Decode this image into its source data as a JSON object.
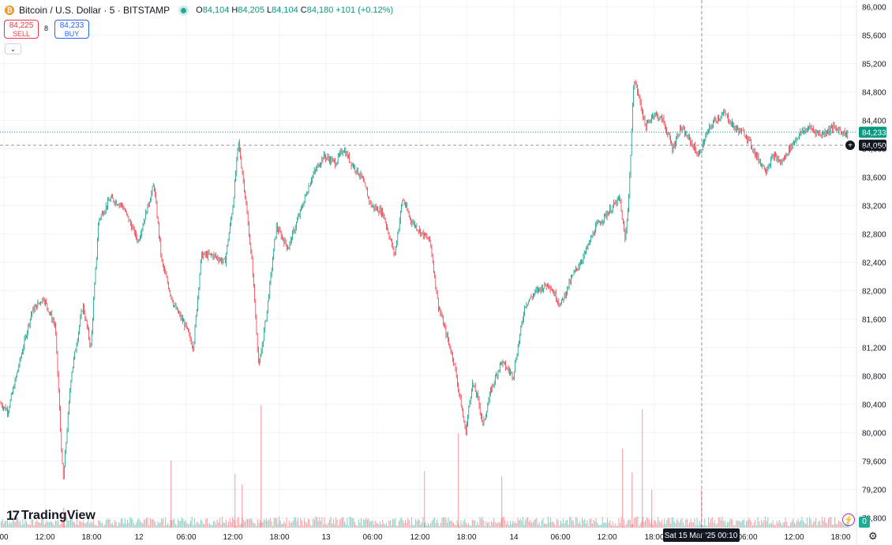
{
  "header": {
    "symbol_title": "Bitcoin / U.S. Dollar · 5 · BITSTAMP",
    "ohlc": {
      "o_label": "O",
      "o": "84,104",
      "h_label": "H",
      "h": "84,205",
      "l_label": "L",
      "l": "84,104",
      "c_label": "C",
      "c": "84,180",
      "change": "+101 (+0.12%)"
    }
  },
  "trade": {
    "sell_price": "84,225",
    "sell_label": "SELL",
    "buy_price": "84,233",
    "buy_label": "BUY",
    "spread": "8"
  },
  "brand": {
    "logo_text": "TradingView"
  },
  "indicators": {
    "alerts_count": "0"
  },
  "colors": {
    "up": "#089981",
    "down": "#f23645",
    "grid": "#f0f3fa",
    "last_price_label": "#089981"
  },
  "chart_data": {
    "type": "candlestick",
    "symbol": "Bitcoin / U.S. Dollar",
    "interval": "5",
    "exchange": "BITSTAMP",
    "y_ticks": [
      86000,
      85600,
      85200,
      84800,
      84400,
      84000,
      83600,
      83200,
      82800,
      82400,
      82000,
      81600,
      81200,
      80800,
      80400,
      80000,
      79600,
      79200,
      78800
    ],
    "ylim": [
      78660,
      86030
    ],
    "x_ticks": [
      "00",
      "12:00",
      "18:00",
      "12",
      "06:00",
      "12:00",
      "18:00",
      "13",
      "06:00",
      "12:00",
      "18:00",
      "14",
      "06:00",
      "12:00",
      "18:00",
      "15",
      "06:00",
      "12:00",
      "18:00"
    ],
    "last_price": 84233,
    "crosshair_price": 84050,
    "crosshair_time": "Sat 15 Mar '25   00:10",
    "price_path": [
      [
        0,
        80420
      ],
      [
        10,
        80300
      ],
      [
        25,
        81000
      ],
      [
        40,
        81700
      ],
      [
        55,
        81900
      ],
      [
        70,
        81500
      ],
      [
        80,
        79300
      ],
      [
        90,
        80800
      ],
      [
        105,
        81800
      ],
      [
        115,
        81200
      ],
      [
        125,
        83000
      ],
      [
        140,
        83300
      ],
      [
        155,
        83200
      ],
      [
        175,
        82700
      ],
      [
        195,
        83500
      ],
      [
        205,
        82400
      ],
      [
        220,
        81800
      ],
      [
        235,
        81500
      ],
      [
        245,
        81200
      ],
      [
        255,
        82500
      ],
      [
        270,
        82500
      ],
      [
        285,
        82400
      ],
      [
        295,
        83200
      ],
      [
        302,
        84100
      ],
      [
        310,
        83400
      ],
      [
        320,
        82300
      ],
      [
        328,
        80900
      ],
      [
        338,
        81700
      ],
      [
        350,
        82900
      ],
      [
        365,
        82600
      ],
      [
        380,
        83100
      ],
      [
        395,
        83600
      ],
      [
        410,
        83900
      ],
      [
        425,
        83800
      ],
      [
        435,
        84000
      ],
      [
        445,
        83800
      ],
      [
        458,
        83600
      ],
      [
        470,
        83200
      ],
      [
        485,
        83100
      ],
      [
        500,
        82500
      ],
      [
        510,
        83300
      ],
      [
        520,
        83000
      ],
      [
        535,
        82800
      ],
      [
        545,
        82700
      ],
      [
        555,
        81800
      ],
      [
        565,
        81400
      ],
      [
        575,
        81000
      ],
      [
        590,
        80000
      ],
      [
        598,
        80700
      ],
      [
        605,
        80500
      ],
      [
        612,
        80100
      ],
      [
        622,
        80600
      ],
      [
        635,
        81000
      ],
      [
        650,
        80800
      ],
      [
        665,
        81800
      ],
      [
        680,
        82000
      ],
      [
        695,
        82100
      ],
      [
        710,
        81800
      ],
      [
        725,
        82200
      ],
      [
        740,
        82500
      ],
      [
        755,
        82900
      ],
      [
        770,
        83100
      ],
      [
        785,
        83300
      ],
      [
        792,
        82700
      ],
      [
        797,
        83400
      ],
      [
        803,
        85000
      ],
      [
        810,
        84700
      ],
      [
        818,
        84300
      ],
      [
        828,
        84500
      ],
      [
        840,
        84400
      ],
      [
        852,
        84000
      ],
      [
        862,
        84300
      ],
      [
        875,
        84100
      ],
      [
        885,
        83900
      ],
      [
        895,
        84200
      ],
      [
        905,
        84400
      ],
      [
        918,
        84500
      ],
      [
        930,
        84300
      ],
      [
        945,
        84200
      ],
      [
        958,
        83900
      ],
      [
        970,
        83700
      ],
      [
        980,
        83900
      ],
      [
        990,
        83800
      ],
      [
        1000,
        84000
      ],
      [
        1012,
        84200
      ],
      [
        1025,
        84300
      ],
      [
        1040,
        84200
      ],
      [
        1055,
        84300
      ],
      [
        1066,
        84250
      ],
      [
        1075,
        84180
      ]
    ],
    "volume_spikes": [
      [
        80,
        25
      ],
      [
        216,
        85
      ],
      [
        297,
        68
      ],
      [
        306,
        55
      ],
      [
        330,
        155
      ],
      [
        537,
        72
      ],
      [
        580,
        120
      ],
      [
        635,
        65
      ],
      [
        788,
        100
      ],
      [
        800,
        70
      ],
      [
        813,
        150
      ],
      [
        825,
        48
      ],
      [
        888,
        48
      ]
    ],
    "volume_max_px": 160
  }
}
